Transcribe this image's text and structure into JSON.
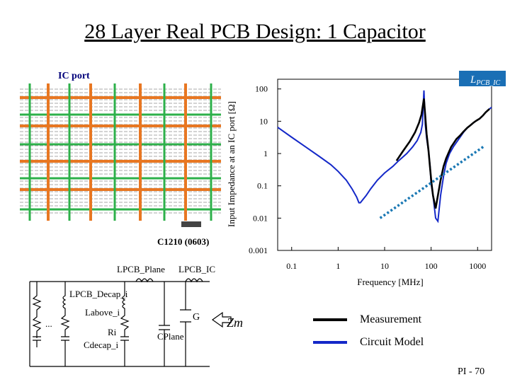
{
  "slide": {
    "title": "28 Layer Real PCB Design: 1 Capacitor",
    "ic_port_label": "IC port",
    "capacitor_label": "C1210 (0603)",
    "page_number": "PI - 70"
  },
  "circuit": {
    "labels": {
      "l_pcb_plane": "LPCB_Plane",
      "l_pcb_ic": "LPCB_IC",
      "l_pcb_decap": "LPCB_Decap_i",
      "l_above": "Labove_i",
      "r_i": "Ri",
      "c_plane": "CPlane",
      "c_decap": "Cdecap_i",
      "ground_node": "G",
      "z_m": "Zm",
      "ellipsis": "..."
    }
  },
  "colors": {
    "measurement": "#000000",
    "circuit_model": "#1428c8",
    "asymptote": "#1a78b4",
    "pcb_copper": "#e87722",
    "pcb_green": "#2db04a",
    "title_blue": "#00007a"
  },
  "chart_data": {
    "type": "line",
    "title": "",
    "xlabel": "Frequency [MHz]",
    "ylabel": "Input Impedance at an IC port [Ω]",
    "x_scale": "log",
    "y_scale": "log",
    "xlim": [
      0.05,
      2000
    ],
    "ylim": [
      0.001,
      200
    ],
    "x_ticks": [
      "0.1",
      "1",
      "10",
      "100",
      "1000"
    ],
    "x_tick_values": [
      0.1,
      1,
      10,
      100,
      1000
    ],
    "y_ticks": [
      "100",
      "10",
      "1",
      "0.1",
      "0.01",
      "0.001"
    ],
    "y_tick_values": [
      100,
      10,
      1,
      0.1,
      0.01,
      0.001
    ],
    "annotation": "LPCB_IC",
    "legend_position": "bottom",
    "series": [
      {
        "name": "Measurement",
        "color": "#000000",
        "x": [
          18,
          25,
          35,
          45,
          55,
          62,
          70,
          80,
          88,
          95,
          102,
          110,
          125,
          140,
          160,
          185,
          210,
          240,
          270,
          300,
          350,
          420,
          500,
          600,
          700,
          800,
          900,
          1000,
          1100,
          1300,
          1500,
          1800
        ],
        "y": [
          0.6,
          1.2,
          2.4,
          4.5,
          9,
          16,
          50,
          4,
          1.2,
          0.35,
          0.12,
          0.05,
          0.02,
          0.05,
          0.15,
          0.4,
          0.7,
          1.1,
          1.6,
          2.0,
          2.8,
          3.6,
          4.8,
          6.3,
          7.5,
          8.8,
          10,
          11,
          12,
          15,
          19,
          24
        ]
      },
      {
        "name": "Circuit Model",
        "color": "#1428c8",
        "x": [
          0.05,
          0.1,
          0.2,
          0.4,
          0.7,
          1,
          1.5,
          2,
          2.5,
          2.8,
          3,
          4,
          5,
          7,
          10,
          15,
          20,
          30,
          40,
          50,
          60,
          65,
          70,
          75,
          80,
          88,
          95,
          100,
          110,
          125,
          140,
          160,
          185,
          210,
          250,
          300,
          350,
          420,
          500,
          600,
          700,
          800,
          900,
          1000,
          1100,
          1300,
          1500,
          1800,
          2000
        ],
        "y": [
          6.5,
          3.2,
          1.6,
          0.8,
          0.45,
          0.28,
          0.15,
          0.08,
          0.045,
          0.03,
          0.03,
          0.05,
          0.08,
          0.15,
          0.25,
          0.4,
          0.6,
          1.0,
          1.6,
          2.5,
          4.5,
          8,
          90,
          8,
          3,
          1.2,
          0.4,
          0.12,
          0.05,
          0.01,
          0.008,
          0.05,
          0.2,
          0.5,
          1.0,
          1.6,
          2.2,
          3.2,
          4.6,
          6.2,
          7.5,
          8.8,
          10,
          11,
          12,
          15,
          19,
          24,
          27
        ]
      },
      {
        "name": "LPCB_IC asymptote",
        "color": "#1a78b4",
        "x": [
          8,
          1400
        ],
        "y": [
          0.01,
          1.7
        ]
      }
    ]
  }
}
